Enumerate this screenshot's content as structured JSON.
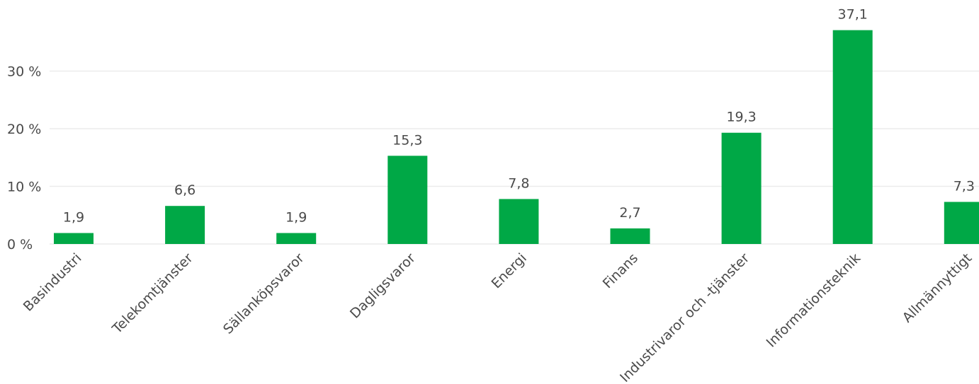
{
  "chart_data": {
    "type": "bar",
    "categories": [
      "Basindustri",
      "Telekomtjänster",
      "Sällanköpsvaror",
      "Dagligsvaror",
      "Energi",
      "Finans",
      "Industrivaror och -tjänster",
      "Informationsteknik",
      "Allmännyttigt"
    ],
    "values": [
      1.9,
      6.6,
      1.9,
      15.3,
      7.8,
      2.7,
      19.3,
      37.1,
      7.3
    ],
    "value_labels": [
      "1,9",
      "6,6",
      "1,9",
      "15,3",
      "7,8",
      "2,7",
      "19,3",
      "37,1",
      "7,3"
    ],
    "y_ticks": [
      0,
      10,
      20,
      30
    ],
    "y_tick_labels": [
      "0 %",
      "10 %",
      "20 %",
      "30 %"
    ],
    "ylim": [
      0,
      40
    ],
    "grid": true,
    "bar_color": "#00a846",
    "title": "",
    "xlabel": "",
    "ylabel": ""
  }
}
